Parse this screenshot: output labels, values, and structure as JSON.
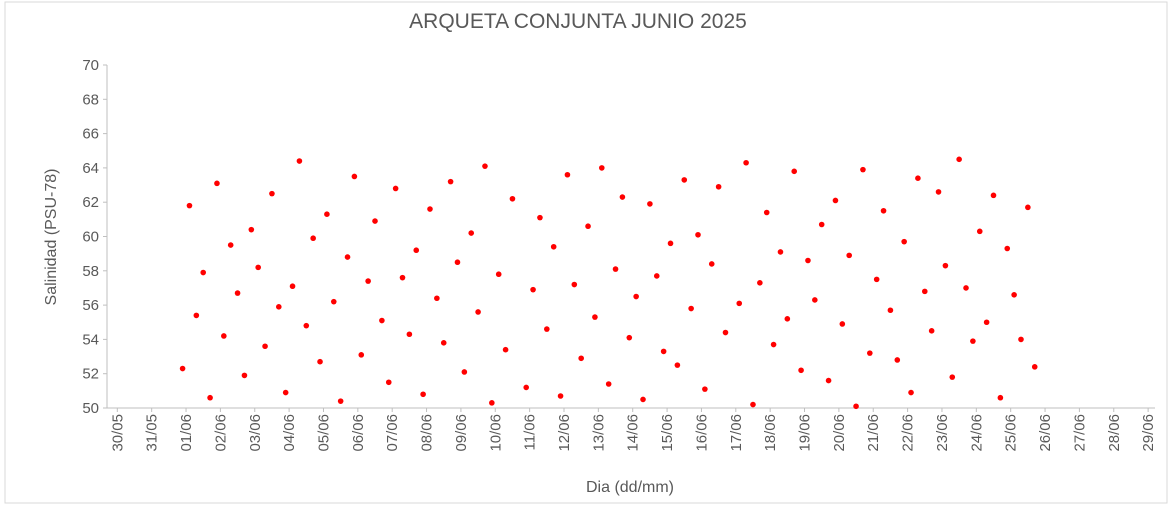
{
  "chart_data": {
    "type": "scatter",
    "title": "ARQUETA CONJUNTA JUNIO 2025",
    "x_label": "Dia (dd/mm)",
    "y_label": "Salinidad (PSU-78)",
    "color": "#ff0000",
    "xlim": [
      -0.3,
      30.2
    ],
    "ylim": [
      50,
      70
    ],
    "yticks": [
      50,
      52,
      54,
      56,
      58,
      60,
      62,
      64,
      66,
      68,
      70
    ],
    "xticks": [
      {
        "value": 0,
        "label": "30/05"
      },
      {
        "value": 1,
        "label": "31/05"
      },
      {
        "value": 2,
        "label": "01/06"
      },
      {
        "value": 3,
        "label": "02/06"
      },
      {
        "value": 4,
        "label": "03/06"
      },
      {
        "value": 5,
        "label": "04/06"
      },
      {
        "value": 6,
        "label": "05/06"
      },
      {
        "value": 7,
        "label": "06/06"
      },
      {
        "value": 8,
        "label": "07/06"
      },
      {
        "value": 9,
        "label": "08/06"
      },
      {
        "value": 10,
        "label": "09/06"
      },
      {
        "value": 11,
        "label": "10/06"
      },
      {
        "value": 12,
        "label": "11/06"
      },
      {
        "value": 13,
        "label": "12/06"
      },
      {
        "value": 14,
        "label": "13/06"
      },
      {
        "value": 15,
        "label": "14/06"
      },
      {
        "value": 16,
        "label": "15/06"
      },
      {
        "value": 17,
        "label": "16/06"
      },
      {
        "value": 18,
        "label": "17/06"
      },
      {
        "value": 19,
        "label": "18/06"
      },
      {
        "value": 20,
        "label": "19/06"
      },
      {
        "value": 21,
        "label": "20/06"
      },
      {
        "value": 22,
        "label": "21/06"
      },
      {
        "value": 23,
        "label": "22/06"
      },
      {
        "value": 24,
        "label": "23/06"
      },
      {
        "value": 25,
        "label": "24/06"
      },
      {
        "value": 26,
        "label": "25/06"
      },
      {
        "value": 27,
        "label": "26/06"
      },
      {
        "value": 28,
        "label": "27/06"
      },
      {
        "value": 29,
        "label": "28/06"
      },
      {
        "value": 30,
        "label": "29/06"
      }
    ],
    "x": [
      1.9,
      2.1,
      2.3,
      2.5,
      2.7,
      2.9,
      3.1,
      3.3,
      3.5,
      3.7,
      3.9,
      4.1,
      4.3,
      4.5,
      4.7,
      4.9,
      5.1,
      5.3,
      5.5,
      5.7,
      5.9,
      6.1,
      6.3,
      6.5,
      6.7,
      6.9,
      7.1,
      7.3,
      7.5,
      7.7,
      7.9,
      8.1,
      8.3,
      8.5,
      8.7,
      8.9,
      9.1,
      9.3,
      9.5,
      9.7,
      9.9,
      10.1,
      10.3,
      10.5,
      10.7,
      10.9,
      11.1,
      11.3,
      11.5,
      11.9,
      12.1,
      12.3,
      12.5,
      12.7,
      12.9,
      13.1,
      13.3,
      13.5,
      13.7,
      13.9,
      14.1,
      14.3,
      14.5,
      14.7,
      14.9,
      15.1,
      15.3,
      15.5,
      15.7,
      15.9,
      16.1,
      16.3,
      16.5,
      16.7,
      16.9,
      17.1,
      17.3,
      17.5,
      17.7,
      18.1,
      18.3,
      18.5,
      18.7,
      18.9,
      19.1,
      19.3,
      19.5,
      19.7,
      19.9,
      20.1,
      20.3,
      20.5,
      20.7,
      20.9,
      21.1,
      21.3,
      21.5,
      21.7,
      21.9,
      22.1,
      22.3,
      22.5,
      22.7,
      22.9,
      23.1,
      23.3,
      23.5,
      23.7,
      23.9,
      24.1,
      24.3,
      24.5,
      24.7,
      24.9,
      25.1,
      25.3,
      25.5,
      25.7,
      25.9,
      26.1,
      26.3,
      26.5,
      26.7
    ],
    "values": [
      52.3,
      61.8,
      55.4,
      57.9,
      50.6,
      63.1,
      54.2,
      59.5,
      56.7,
      51.9,
      60.4,
      58.2,
      53.6,
      62.5,
      55.9,
      50.9,
      57.1,
      64.4,
      54.8,
      59.9,
      52.7,
      61.3,
      56.2,
      50.4,
      58.8,
      63.5,
      53.1,
      57.4,
      60.9,
      55.1,
      51.5,
      62.8,
      57.6,
      54.3,
      59.2,
      50.8,
      61.6,
      56.4,
      53.8,
      63.2,
      58.5,
      52.1,
      60.2,
      55.6,
      64.1,
      50.3,
      57.8,
      53.4,
      62.2,
      51.2,
      56.9,
      61.1,
      54.6,
      59.4,
      50.7,
      63.6,
      57.2,
      52.9,
      60.6,
      55.3,
      64.0,
      51.4,
      58.1,
      62.3,
      54.1,
      56.5,
      50.5,
      61.9,
      57.7,
      53.3,
      59.6,
      52.5,
      63.3,
      55.8,
      60.1,
      51.1,
      58.4,
      62.9,
      54.4,
      56.1,
      64.3,
      50.2,
      57.3,
      61.4,
      53.7,
      59.1,
      55.2,
      63.8,
      52.2,
      58.6,
      56.3,
      60.7,
      51.6,
      62.1,
      54.9,
      58.9,
      50.1,
      63.9,
      53.2,
      57.5,
      61.5,
      55.7,
      52.8,
      59.7,
      50.9,
      63.4,
      56.8,
      54.5,
      62.6,
      58.3,
      51.8,
      64.5,
      57.0,
      53.9,
      60.3,
      55.0,
      62.4,
      50.6,
      59.3,
      56.6,
      54.0,
      61.7,
      52.4
    ]
  }
}
